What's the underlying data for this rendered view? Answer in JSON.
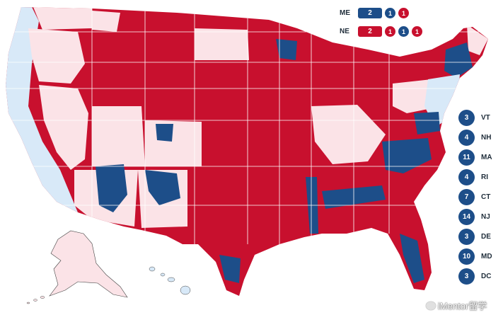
{
  "colors": {
    "dem": "#1d4e89",
    "rep": "#c8102e",
    "lean_dem": "#d8e9f8",
    "lean_rep": "#fbe3e7",
    "border": "#ffffff"
  },
  "split_states": [
    {
      "state": "ME",
      "pills": [
        {
          "value": "2",
          "party": "dem"
        }
      ],
      "dots": [
        {
          "value": "1",
          "party": "dem"
        },
        {
          "value": "1",
          "party": "rep"
        }
      ]
    },
    {
      "state": "NE",
      "pills": [
        {
          "value": "2",
          "party": "rep"
        }
      ],
      "dots": [
        {
          "value": "1",
          "party": "rep"
        },
        {
          "value": "1",
          "party": "dem"
        },
        {
          "value": "1",
          "party": "rep"
        }
      ]
    }
  ],
  "small_states": [
    {
      "abbr": "VT",
      "votes": "3"
    },
    {
      "abbr": "NH",
      "votes": "4"
    },
    {
      "abbr": "MA",
      "votes": "11"
    },
    {
      "abbr": "RI",
      "votes": "4"
    },
    {
      "abbr": "CT",
      "votes": "7"
    },
    {
      "abbr": "NJ",
      "votes": "14"
    },
    {
      "abbr": "DE",
      "votes": "3"
    },
    {
      "abbr": "MD",
      "votes": "10"
    },
    {
      "abbr": "DC",
      "votes": "3"
    }
  ],
  "watermark": "iMentor留学"
}
